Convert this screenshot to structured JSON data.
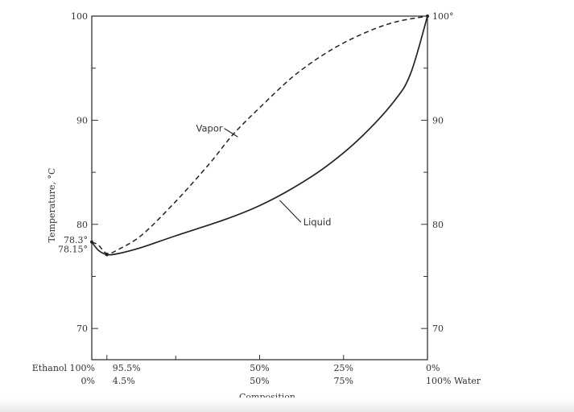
{
  "chart_data": {
    "type": "line",
    "title": "",
    "ylabel": "Temperature, °C",
    "xlabel": "Composition",
    "ylim": [
      67,
      100
    ],
    "x_domain_note": "x = weight % water",
    "left_ticks": [
      {
        "value": 100,
        "label": "100"
      },
      {
        "value": 90,
        "label": "90"
      },
      {
        "value": 80,
        "label": "80"
      },
      {
        "value": 70,
        "label": "70"
      }
    ],
    "right_ticks": [
      {
        "value": 100,
        "label": "100°"
      },
      {
        "value": 90,
        "label": "90"
      },
      {
        "value": 80,
        "label": "80"
      },
      {
        "value": 70,
        "label": "70"
      }
    ],
    "boiling_point_labels": [
      {
        "value": 78.3,
        "label": "78.3°"
      },
      {
        "value": 78.15,
        "label": "78.15°"
      }
    ],
    "x_ticks": [
      {
        "water": 0,
        "ethanol_label": "Ethanol 100%",
        "water_label": "0%",
        "align": "end"
      },
      {
        "water": 4.5,
        "ethanol_label": "95.5%",
        "water_label": "4.5%",
        "align": "start"
      },
      {
        "water": 50,
        "ethanol_label": "50%",
        "water_label": "50%",
        "align": "middle"
      },
      {
        "water": 75,
        "ethanol_label": "25%",
        "water_label": "75%",
        "align": "middle"
      },
      {
        "water": 100,
        "ethanol_label": "0%",
        "water_label": "100% Water",
        "align": "start"
      }
    ],
    "series": [
      {
        "name": "Vapor",
        "style": "dashed",
        "points": [
          [
            0,
            78.3
          ],
          [
            2,
            78.0
          ],
          [
            4.5,
            77.2
          ],
          [
            8,
            77.6
          ],
          [
            15,
            79.0
          ],
          [
            25,
            82.2
          ],
          [
            35,
            85.8
          ],
          [
            42,
            88.6
          ],
          [
            50,
            91.2
          ],
          [
            60,
            94.2
          ],
          [
            70,
            96.5
          ],
          [
            80,
            98.2
          ],
          [
            90,
            99.4
          ],
          [
            100,
            100
          ]
        ]
      },
      {
        "name": "Liquid",
        "style": "solid",
        "points": [
          [
            0,
            78.3
          ],
          [
            2,
            77.5
          ],
          [
            4.5,
            77.1
          ],
          [
            8,
            77.2
          ],
          [
            15,
            77.8
          ],
          [
            25,
            78.9
          ],
          [
            40,
            80.5
          ],
          [
            50,
            81.8
          ],
          [
            60,
            83.5
          ],
          [
            70,
            85.6
          ],
          [
            80,
            88.3
          ],
          [
            90,
            91.8
          ],
          [
            95,
            94.5
          ],
          [
            100,
            100
          ]
        ]
      }
    ],
    "curve_labels": [
      {
        "series": "Vapor",
        "text": "Vapor",
        "x": 39,
        "y": 88.9,
        "at_x": 43.5,
        "at_y": 88.4
      },
      {
        "series": "Liquid",
        "text": "Liquid",
        "x": 63,
        "y": 79.9,
        "at_x": 56,
        "at_y": 82.3
      }
    ]
  }
}
